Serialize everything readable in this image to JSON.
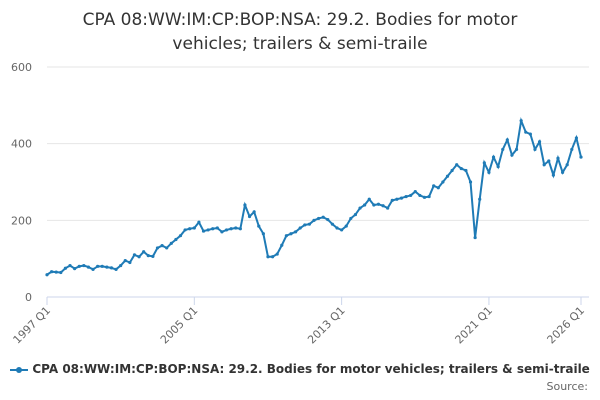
{
  "chart_data": {
    "type": "line",
    "title": "CPA 08:WW:IM:CP:BOP:NSA: 29.2. Bodies for motor vehicles; trailers & semi-traile",
    "source": "Source:",
    "categories": [
      "1997 Q1",
      null,
      null,
      null,
      null,
      null,
      null,
      null,
      null,
      null,
      null,
      null,
      null,
      null,
      null,
      null,
      null,
      null,
      null,
      null,
      null,
      null,
      null,
      null,
      null,
      null,
      null,
      null,
      null,
      null,
      null,
      null,
      "2005 Q1",
      null,
      null,
      null,
      null,
      null,
      null,
      null,
      null,
      null,
      null,
      null,
      null,
      null,
      null,
      null,
      null,
      null,
      null,
      null,
      null,
      null,
      null,
      null,
      null,
      null,
      null,
      null,
      null,
      null,
      null,
      null,
      "2013 Q1",
      null,
      null,
      null,
      null,
      null,
      null,
      null,
      null,
      null,
      null,
      null,
      null,
      null,
      null,
      null,
      null,
      null,
      null,
      null,
      null,
      null,
      null,
      null,
      null,
      null,
      null,
      null,
      null,
      null,
      null,
      null,
      "2021 Q1",
      null,
      null,
      null,
      null,
      null,
      null,
      null,
      null,
      null,
      null,
      null,
      null,
      null,
      null,
      null,
      null,
      null,
      null,
      null,
      "2026 Q1"
    ],
    "series": [
      {
        "name": "CPA 08:WW:IM:CP:BOP:NSA: 29.2. Bodies for motor vehicles; trailers & semi-traile",
        "color": "#1f7bb6",
        "values": [
          58,
          66,
          65,
          64,
          75,
          82,
          74,
          80,
          82,
          78,
          72,
          80,
          80,
          78,
          76,
          72,
          82,
          95,
          90,
          110,
          105,
          118,
          108,
          106,
          128,
          134,
          128,
          140,
          150,
          160,
          175,
          178,
          180,
          195,
          172,
          175,
          178,
          180,
          170,
          175,
          178,
          180,
          178,
          240,
          210,
          222,
          185,
          165,
          105,
          105,
          112,
          135,
          160,
          165,
          170,
          180,
          188,
          190,
          200,
          205,
          208,
          202,
          190,
          180,
          175,
          185,
          205,
          215,
          232,
          240,
          255,
          240,
          242,
          238,
          232,
          252,
          255,
          258,
          262,
          265,
          275,
          265,
          260,
          262,
          290,
          285,
          300,
          315,
          330,
          345,
          335,
          330,
          300,
          155,
          255,
          350,
          325,
          365,
          340,
          385,
          410,
          370,
          385,
          460,
          430,
          425,
          385,
          405,
          345,
          355,
          318,
          362,
          325,
          345,
          385,
          415,
          365
        ]
      }
    ],
    "ylim": [
      0,
      600
    ],
    "yticks": [
      0,
      200,
      400,
      600
    ],
    "grid": true
  }
}
